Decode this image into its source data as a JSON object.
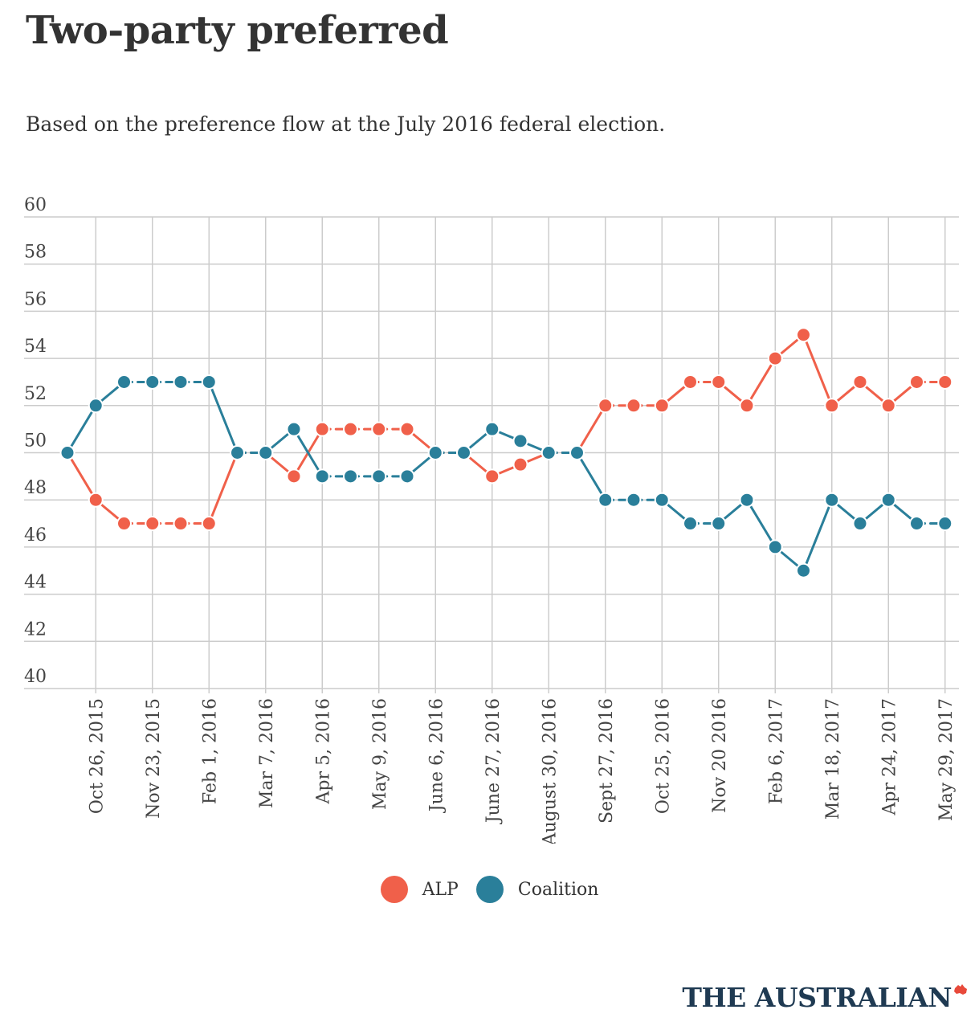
{
  "header": {
    "title": "Two-party preferred",
    "subtitle": "Based on the preference flow at the July 2016 federal election."
  },
  "brand": {
    "logo_text": "THE AUSTRALIAN"
  },
  "colors": {
    "alp": "#f0604a",
    "coalition": "#2a7f9a",
    "grid": "#cccccc",
    "text": "#333333"
  },
  "chart_data": {
    "type": "line",
    "title": "Two-party preferred",
    "subtitle": "Based on the preference flow at the July 2016 federal election.",
    "ylim": [
      40,
      60
    ],
    "yticks": [
      40,
      42,
      44,
      46,
      48,
      50,
      52,
      54,
      56,
      58,
      60
    ],
    "ytick_labels": [
      "40",
      "42",
      "44",
      "46",
      "48",
      "50",
      "52",
      "54",
      "56",
      "58",
      "60"
    ],
    "grid": true,
    "legend_position": "bottom-center",
    "x_tick_labels": [
      "Oct 26, 2015",
      "Nov 23, 2015",
      "Feb 1, 2016",
      "Mar 7, 2016",
      "Apr 5, 2016",
      "May 9, 2016",
      "June 6, 2016",
      "June 27, 2016",
      "August 30, 2016",
      "Sept 27, 2016",
      "Oct 25, 2016",
      "Nov 20 2016",
      "Feb 6, 2017",
      "Mar 18, 2017",
      "Apr 24, 2017",
      "May 29, 2017"
    ],
    "series": [
      {
        "name": "ALP",
        "color": "#f0604a",
        "values": [
          50,
          48,
          47,
          47,
          47,
          47,
          50,
          50,
          49,
          51,
          51,
          51,
          51,
          50,
          50,
          49,
          49.5,
          50,
          50,
          52,
          52,
          52,
          53,
          53,
          52,
          54,
          55,
          52,
          53,
          52,
          53,
          53
        ]
      },
      {
        "name": "Coalition",
        "color": "#2a7f9a",
        "values": [
          50,
          52,
          53,
          53,
          53,
          53,
          50,
          50,
          51,
          49,
          49,
          49,
          49,
          50,
          50,
          51,
          50.5,
          50,
          50,
          48,
          48,
          48,
          47,
          47,
          48,
          46,
          45,
          48,
          47,
          48,
          47,
          47
        ]
      }
    ]
  }
}
